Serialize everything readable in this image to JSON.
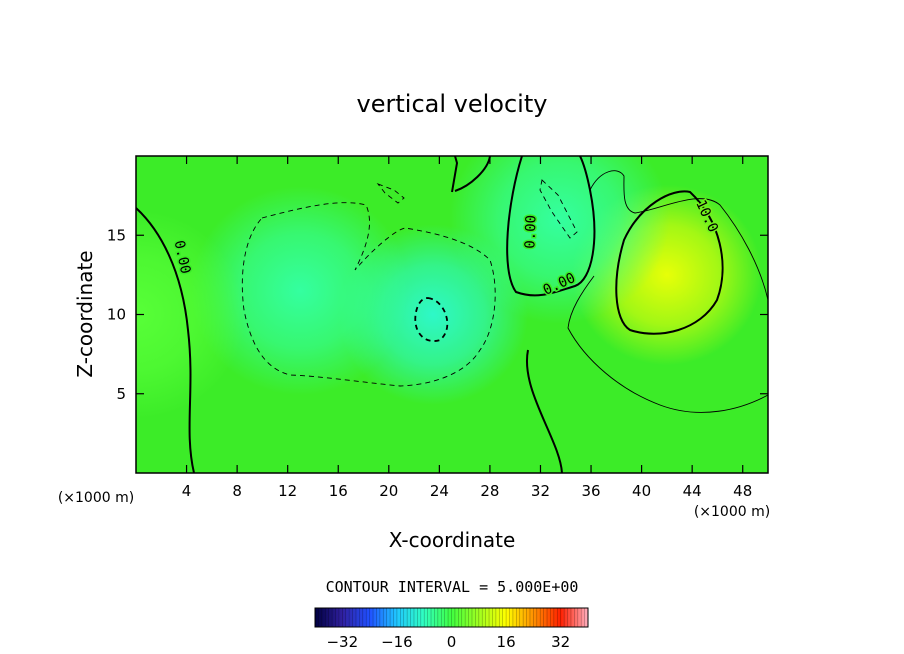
{
  "chart_data": {
    "type": "heatmap",
    "title": "vertical velocity",
    "xlabel": "X-coordinate",
    "ylabel": "Z-coordinate",
    "x_unit": "(×1000 m)",
    "y_unit": "(×1000 m)",
    "xlim": [
      0,
      50
    ],
    "ylim": [
      0,
      20
    ],
    "x_ticks": [
      4,
      8,
      12,
      16,
      20,
      24,
      28,
      32,
      36,
      40,
      44,
      48
    ],
    "y_ticks": [
      5,
      10,
      15
    ],
    "grid": false,
    "contour_interval_label": "CONTOUR INTERVAL = 5.000E+00",
    "contour_labels": [
      "0.00",
      "0.00",
      "0.00",
      "10.0"
    ],
    "colorbar": {
      "min": -40,
      "max": 40,
      "ticks": [
        -32,
        -16,
        0,
        16,
        32
      ],
      "colors": [
        "#000040",
        "#3020a0",
        "#2050ff",
        "#20c8ff",
        "#30ffc0",
        "#40ff40",
        "#a0ff20",
        "#ffff00",
        "#ff9000",
        "#ff2000",
        "#ffb0c0"
      ]
    },
    "features": [
      {
        "x": 42,
        "z": 12.5,
        "value": 14,
        "kind": "updraft maximum"
      },
      {
        "x": 23.5,
        "z": 10,
        "value": -9,
        "kind": "downdraft minimum"
      },
      {
        "x": 13,
        "z": 11.5,
        "value": -6,
        "kind": "downdraft"
      },
      {
        "x": 33.5,
        "z": 16,
        "value": -6,
        "kind": "downdraft"
      },
      {
        "x": 0,
        "z": 10,
        "value": 2,
        "kind": "weak updraft"
      }
    ]
  }
}
